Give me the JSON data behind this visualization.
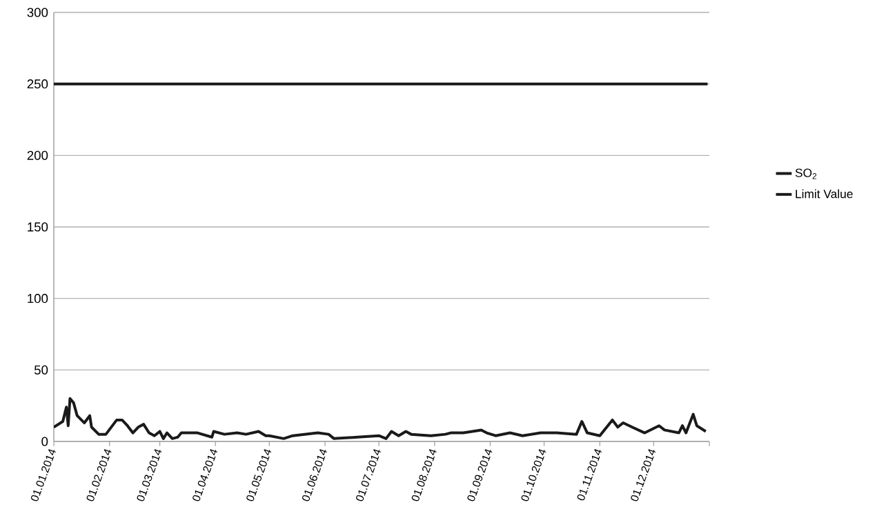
{
  "chart_data": {
    "type": "line",
    "xlim": [
      "2014-01-01",
      "2015-01-01"
    ],
    "xticks": [
      {
        "value": "2014-01-01",
        "label": "01.01.2014"
      },
      {
        "value": "2014-02-01",
        "label": "01.02.2014"
      },
      {
        "value": "2014-03-01",
        "label": "01.03.2014"
      },
      {
        "value": "2014-04-01",
        "label": "01.04.2014"
      },
      {
        "value": "2014-05-01",
        "label": "01.05.2014"
      },
      {
        "value": "2014-06-01",
        "label": "01.06.2014"
      },
      {
        "value": "2014-07-01",
        "label": "01.07.2014"
      },
      {
        "value": "2014-08-01",
        "label": "01.08.2014"
      },
      {
        "value": "2014-09-01",
        "label": "01.09.2014"
      },
      {
        "value": "2014-10-01",
        "label": "01.10.2014"
      },
      {
        "value": "2014-11-01",
        "label": "01.11.2014"
      },
      {
        "value": "2014-12-01",
        "label": "01.12.2014"
      },
      {
        "value": "2015-01-01",
        "label": null
      }
    ],
    "ylim": [
      0,
      300
    ],
    "yticks": [
      0,
      50,
      100,
      150,
      200,
      250,
      300
    ],
    "grid": "y",
    "legend": "right",
    "marker": "none",
    "line_style": "solid",
    "series": [
      {
        "name": "SO$_{2}$",
        "color": "#1a1a1a",
        "x": [
          "2014-01-01",
          "2014-01-06",
          "2014-01-08",
          "2014-01-09",
          "2014-01-10",
          "2014-01-12",
          "2014-01-14",
          "2014-01-18",
          "2014-01-21",
          "2014-01-22",
          "2014-01-26",
          "2014-01-30",
          "2014-02-05",
          "2014-02-08",
          "2014-02-11",
          "2014-02-14",
          "2014-02-17",
          "2014-02-20",
          "2014-02-23",
          "2014-02-26",
          "2014-03-01",
          "2014-03-03",
          "2014-03-05",
          "2014-03-08",
          "2014-03-11",
          "2014-03-13",
          "2014-03-22",
          "2014-03-30",
          "2014-03-31",
          "2014-04-06",
          "2014-04-13",
          "2014-04-18",
          "2014-04-25",
          "2014-04-29",
          "2014-05-01",
          "2014-05-09",
          "2014-05-14",
          "2014-05-28",
          "2014-06-03",
          "2014-06-06",
          "2014-06-19",
          "2014-07-01",
          "2014-07-05",
          "2014-07-08",
          "2014-07-12",
          "2014-07-16",
          "2014-07-19",
          "2014-07-30",
          "2014-08-07",
          "2014-08-10",
          "2014-08-17",
          "2014-08-22",
          "2014-08-27",
          "2014-08-30",
          "2014-09-04",
          "2014-09-12",
          "2014-09-19",
          "2014-09-29",
          "2014-10-08",
          "2014-10-19",
          "2014-10-22",
          "2014-10-25",
          "2014-11-01",
          "2014-11-08",
          "2014-11-11",
          "2014-11-14",
          "2014-11-19",
          "2014-11-26",
          "2014-12-04",
          "2014-12-07",
          "2014-12-15",
          "2014-12-17",
          "2014-12-19",
          "2014-12-23",
          "2014-12-25",
          "2014-12-30"
        ],
        "values": [
          10,
          14,
          24,
          11,
          30,
          27,
          18,
          13,
          18,
          10,
          5,
          5,
          15,
          15,
          11,
          6,
          10,
          12,
          6,
          4,
          7,
          2,
          6,
          2,
          3,
          6,
          6,
          3,
          7,
          5,
          6,
          5,
          7,
          4,
          4,
          2,
          4,
          6,
          5,
          2,
          3,
          4,
          2,
          7,
          4,
          7,
          5,
          4,
          5,
          6,
          6,
          7,
          8,
          6,
          4,
          6,
          4,
          6,
          6,
          5,
          14,
          6,
          4,
          15,
          10,
          13,
          10,
          6,
          11,
          8,
          6,
          11,
          6,
          19,
          11,
          7
        ]
      },
      {
        "name": "Limit Value",
        "color": "#1a1a1a",
        "x": [
          "2014-01-01",
          "2014-12-31"
        ],
        "values": [
          250,
          250
        ]
      }
    ]
  }
}
